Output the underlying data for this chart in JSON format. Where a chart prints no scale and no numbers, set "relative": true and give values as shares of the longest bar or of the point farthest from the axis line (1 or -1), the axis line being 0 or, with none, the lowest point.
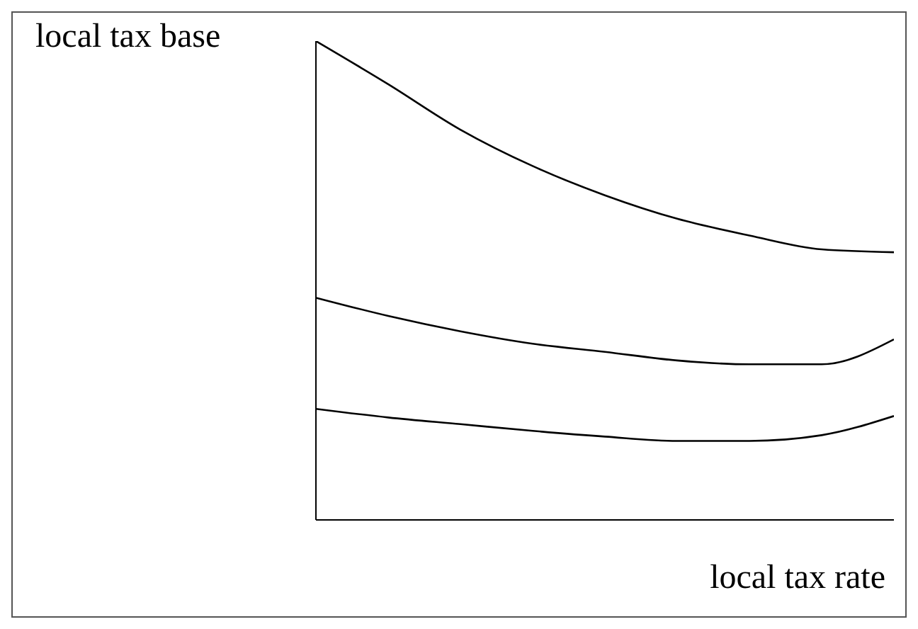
{
  "chart_data": {
    "type": "line",
    "relative": true,
    "xlabel": "local tax rate",
    "ylabel": "local tax base",
    "categories": [
      null,
      null,
      null,
      null,
      null,
      null,
      null,
      null,
      null
    ],
    "series": [
      {
        "color": "#000000",
        "values": [
          1,
          0.91,
          0.815,
          0.739,
          0.678,
          0.629,
          0.594,
          0.565,
          0.559
        ]
      },
      {
        "color": "#000000",
        "values": [
          0.464,
          0.426,
          0.394,
          0.368,
          0.351,
          0.333,
          0.325,
          0.325,
          0.377
        ]
      },
      {
        "color": "#000000",
        "values": [
          0.232,
          0.214,
          0.2,
          0.186,
          0.174,
          0.165,
          0.165,
          0.177,
          0.217
        ]
      }
    ],
    "legend": false,
    "grid": false,
    "marker": "none"
  }
}
